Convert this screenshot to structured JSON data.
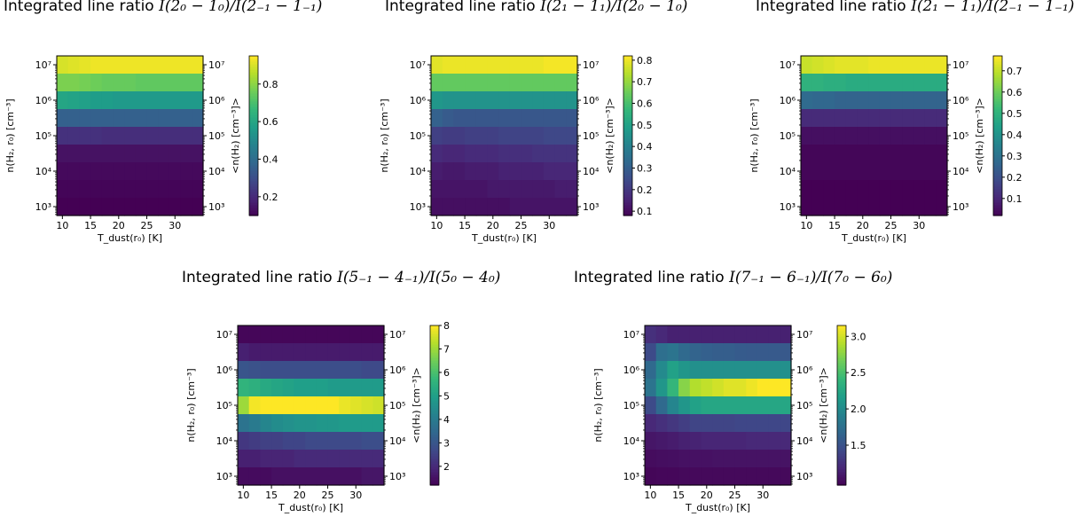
{
  "chart_data": [
    {
      "type": "heatmap",
      "title": "Integrated line ratio ",
      "title_math": "I(2₀ − 1₀)/I(2₋₁ − 1₋₁)",
      "xlabel": "T_dust(r₀) [K]",
      "ylabel_left": "n(H₂, r₀) [cm⁻³]",
      "ylabel_right": "<n(H₂) [cm⁻³]>",
      "x_ticks": [
        "10",
        "15",
        "20",
        "25",
        "30"
      ],
      "y_ticks": [
        "10³",
        "10⁴",
        "10⁵",
        "10⁶",
        "10⁷"
      ],
      "colorbar_ticks": [
        "0.2",
        "0.4",
        "0.6",
        "0.8"
      ],
      "colorbar_range": [
        0.1,
        0.95
      ],
      "temperatures": [
        10,
        12,
        14,
        16,
        18,
        20,
        22,
        24,
        26,
        28,
        30,
        32,
        34
      ],
      "log_density_rows": [
        7.0,
        6.5,
        6.0,
        5.5,
        5.0,
        4.5,
        4.0,
        3.5,
        3.0
      ],
      "values": [
        [
          0.9,
          0.91,
          0.92,
          0.93,
          0.93,
          0.93,
          0.93,
          0.93,
          0.93,
          0.93,
          0.93,
          0.93,
          0.93
        ],
        [
          0.78,
          0.78,
          0.77,
          0.76,
          0.75,
          0.75,
          0.75,
          0.74,
          0.74,
          0.74,
          0.74,
          0.74,
          0.74
        ],
        [
          0.6,
          0.59,
          0.58,
          0.57,
          0.57,
          0.56,
          0.56,
          0.56,
          0.56,
          0.56,
          0.56,
          0.56,
          0.56
        ],
        [
          0.36,
          0.36,
          0.36,
          0.36,
          0.36,
          0.36,
          0.36,
          0.36,
          0.36,
          0.36,
          0.36,
          0.36,
          0.36
        ],
        [
          0.22,
          0.22,
          0.22,
          0.22,
          0.21,
          0.21,
          0.21,
          0.21,
          0.21,
          0.21,
          0.21,
          0.21,
          0.21
        ],
        [
          0.14,
          0.14,
          0.14,
          0.14,
          0.14,
          0.14,
          0.14,
          0.14,
          0.14,
          0.14,
          0.14,
          0.14,
          0.14
        ],
        [
          0.12,
          0.12,
          0.12,
          0.12,
          0.12,
          0.12,
          0.12,
          0.12,
          0.12,
          0.12,
          0.12,
          0.12,
          0.12
        ],
        [
          0.11,
          0.11,
          0.11,
          0.11,
          0.11,
          0.11,
          0.11,
          0.11,
          0.11,
          0.11,
          0.11,
          0.11,
          0.11
        ],
        [
          0.1,
          0.1,
          0.1,
          0.1,
          0.1,
          0.1,
          0.1,
          0.1,
          0.1,
          0.1,
          0.1,
          0.1,
          0.1
        ]
      ]
    },
    {
      "type": "heatmap",
      "title": "Integrated line ratio ",
      "title_math": "I(2₁ − 1₁)/I(2₀ − 1₀)",
      "xlabel": "T_dust(r₀) [K]",
      "ylabel_left": "n(H₂, r₀) [cm⁻³]",
      "ylabel_right": "<n(H₂) [cm⁻³]>",
      "x_ticks": [
        "10",
        "15",
        "20",
        "25",
        "30"
      ],
      "y_ticks": [
        "10³",
        "10⁴",
        "10⁵",
        "10⁶",
        "10⁷"
      ],
      "colorbar_ticks": [
        "0.1",
        "0.2",
        "0.3",
        "0.4",
        "0.5",
        "0.6",
        "0.7",
        "0.8"
      ],
      "colorbar_range": [
        0.08,
        0.82
      ],
      "temperatures": [
        10,
        12,
        14,
        16,
        18,
        20,
        22,
        24,
        26,
        28,
        30,
        32,
        34
      ],
      "log_density_rows": [
        7.0,
        6.5,
        6.0,
        5.5,
        5.0,
        4.5,
        4.0,
        3.5,
        3.0
      ],
      "values": [
        [
          0.79,
          0.8,
          0.8,
          0.8,
          0.8,
          0.8,
          0.8,
          0.8,
          0.8,
          0.8,
          0.81,
          0.81,
          0.81
        ],
        [
          0.64,
          0.64,
          0.64,
          0.64,
          0.64,
          0.64,
          0.64,
          0.64,
          0.64,
          0.64,
          0.64,
          0.64,
          0.64
        ],
        [
          0.47,
          0.46,
          0.46,
          0.46,
          0.46,
          0.46,
          0.46,
          0.46,
          0.46,
          0.46,
          0.46,
          0.46,
          0.46
        ],
        [
          0.31,
          0.29,
          0.28,
          0.28,
          0.28,
          0.28,
          0.28,
          0.28,
          0.28,
          0.28,
          0.28,
          0.28,
          0.28
        ],
        [
          0.22,
          0.21,
          0.21,
          0.22,
          0.22,
          0.22,
          0.23,
          0.23,
          0.23,
          0.23,
          0.24,
          0.24,
          0.24
        ],
        [
          0.17,
          0.16,
          0.16,
          0.17,
          0.17,
          0.17,
          0.18,
          0.18,
          0.18,
          0.19,
          0.19,
          0.19,
          0.19
        ],
        [
          0.14,
          0.13,
          0.13,
          0.14,
          0.14,
          0.14,
          0.15,
          0.15,
          0.15,
          0.15,
          0.16,
          0.16,
          0.16
        ],
        [
          0.12,
          0.12,
          0.12,
          0.12,
          0.12,
          0.13,
          0.13,
          0.13,
          0.13,
          0.13,
          0.13,
          0.14,
          0.14
        ],
        [
          0.11,
          0.11,
          0.11,
          0.11,
          0.11,
          0.11,
          0.11,
          0.12,
          0.12,
          0.12,
          0.12,
          0.12,
          0.12
        ]
      ]
    },
    {
      "type": "heatmap",
      "title": "Integrated line ratio ",
      "title_math": "I(2₁ − 1₁)/I(2₋₁ − 1₋₁)",
      "xlabel": "T_dust(r₀) [K]",
      "ylabel_left": "n(H₂, r₀) [cm⁻³]",
      "ylabel_right": "<n(H₂) [cm⁻³]>",
      "x_ticks": [
        "10",
        "15",
        "20",
        "25",
        "30"
      ],
      "y_ticks": [
        "10³",
        "10⁴",
        "10⁵",
        "10⁶",
        "10⁷"
      ],
      "colorbar_ticks": [
        "0.1",
        "0.2",
        "0.3",
        "0.4",
        "0.5",
        "0.6",
        "0.7"
      ],
      "colorbar_range": [
        0.02,
        0.77
      ],
      "temperatures": [
        10,
        12,
        14,
        16,
        18,
        20,
        22,
        24,
        26,
        28,
        30,
        32,
        34
      ],
      "log_density_rows": [
        7.0,
        6.5,
        6.0,
        5.5,
        5.0,
        4.5,
        4.0,
        3.5,
        3.0
      ],
      "values": [
        [
          0.71,
          0.72,
          0.73,
          0.74,
          0.74,
          0.74,
          0.75,
          0.75,
          0.75,
          0.75,
          0.75,
          0.75,
          0.75
        ],
        [
          0.5,
          0.5,
          0.49,
          0.49,
          0.48,
          0.48,
          0.48,
          0.48,
          0.48,
          0.48,
          0.48,
          0.48,
          0.48
        ],
        [
          0.28,
          0.27,
          0.27,
          0.26,
          0.26,
          0.26,
          0.26,
          0.26,
          0.26,
          0.26,
          0.26,
          0.26,
          0.26
        ],
        [
          0.11,
          0.11,
          0.11,
          0.11,
          0.11,
          0.11,
          0.11,
          0.11,
          0.11,
          0.11,
          0.11,
          0.11,
          0.11
        ],
        [
          0.05,
          0.05,
          0.05,
          0.05,
          0.05,
          0.05,
          0.05,
          0.05,
          0.05,
          0.05,
          0.05,
          0.05,
          0.05
        ],
        [
          0.03,
          0.03,
          0.03,
          0.03,
          0.03,
          0.03,
          0.03,
          0.03,
          0.03,
          0.03,
          0.03,
          0.03,
          0.03
        ],
        [
          0.03,
          0.03,
          0.03,
          0.03,
          0.03,
          0.03,
          0.03,
          0.03,
          0.03,
          0.03,
          0.03,
          0.03,
          0.03
        ],
        [
          0.02,
          0.02,
          0.02,
          0.02,
          0.02,
          0.02,
          0.02,
          0.02,
          0.02,
          0.02,
          0.02,
          0.02,
          0.02
        ],
        [
          0.02,
          0.02,
          0.02,
          0.02,
          0.02,
          0.02,
          0.02,
          0.02,
          0.02,
          0.02,
          0.02,
          0.02,
          0.02
        ]
      ]
    },
    {
      "type": "heatmap",
      "title": "Integrated line ratio ",
      "title_math": "I(5₋₁ − 4₋₁)/I(5₀ − 4₀)",
      "xlabel": "T_dust(r₀) [K]",
      "ylabel_left": "n(H₂, r₀) [cm⁻³]",
      "ylabel_right": "<n(H₂) [cm⁻³]>",
      "x_ticks": [
        "10",
        "15",
        "20",
        "25",
        "30"
      ],
      "y_ticks": [
        "10³",
        "10⁴",
        "10⁵",
        "10⁶",
        "10⁷"
      ],
      "colorbar_ticks": [
        "2",
        "3",
        "4",
        "5",
        "6",
        "7",
        "8"
      ],
      "colorbar_range": [
        1.2,
        8.0
      ],
      "temperatures": [
        10,
        12,
        14,
        16,
        18,
        20,
        22,
        24,
        26,
        28,
        30,
        32,
        34
      ],
      "log_density_rows": [
        7.0,
        6.5,
        6.0,
        5.5,
        5.0,
        4.5,
        4.0,
        3.5,
        3.0
      ],
      "values": [
        [
          1.3,
          1.3,
          1.3,
          1.3,
          1.3,
          1.3,
          1.3,
          1.3,
          1.3,
          1.3,
          1.3,
          1.3,
          1.3
        ],
        [
          1.8,
          1.7,
          1.7,
          1.7,
          1.7,
          1.7,
          1.7,
          1.7,
          1.7,
          1.7,
          1.7,
          1.7,
          1.7
        ],
        [
          3.0,
          2.9,
          2.8,
          2.8,
          2.8,
          2.8,
          2.8,
          2.8,
          2.8,
          2.8,
          2.8,
          2.7,
          2.7
        ],
        [
          5.6,
          5.5,
          5.3,
          5.2,
          5.1,
          5.0,
          5.0,
          5.0,
          4.9,
          4.9,
          4.9,
          4.9,
          4.9
        ],
        [
          7.0,
          7.9,
          8.0,
          8.0,
          8.0,
          8.0,
          8.0,
          8.0,
          8.0,
          7.8,
          7.7,
          7.6,
          7.5
        ],
        [
          3.8,
          4.0,
          4.3,
          4.5,
          4.6,
          4.7,
          4.7,
          4.8,
          4.8,
          4.9,
          4.9,
          4.9,
          4.9
        ],
        [
          2.3,
          2.4,
          2.5,
          2.5,
          2.6,
          2.6,
          2.7,
          2.7,
          2.7,
          2.7,
          2.7,
          2.8,
          2.8
        ],
        [
          1.8,
          1.8,
          1.9,
          1.9,
          1.9,
          2.0,
          2.0,
          2.0,
          2.0,
          2.0,
          2.0,
          2.0,
          2.0
        ],
        [
          1.4,
          1.4,
          1.4,
          1.5,
          1.5,
          1.5,
          1.5,
          1.5,
          1.5,
          1.5,
          1.5,
          1.6,
          1.6
        ]
      ]
    },
    {
      "type": "heatmap",
      "title": "Integrated line ratio ",
      "title_math": "I(7₋₁ − 6₋₁)/I(7₀ − 6₀)",
      "xlabel": "T_dust(r₀) [K]",
      "ylabel_left": "n(H₂, r₀) [cm⁻³]",
      "ylabel_right": "<n(H₂) [cm⁻³]>",
      "x_ticks": [
        "10",
        "15",
        "20",
        "25",
        "30"
      ],
      "y_ticks": [
        "10³",
        "10⁴",
        "10⁵",
        "10⁶",
        "10⁷"
      ],
      "colorbar_ticks": [
        "1.5",
        "2.0",
        "2.5",
        "3.0"
      ],
      "colorbar_range": [
        0.95,
        3.15
      ],
      "temperatures": [
        10,
        12,
        14,
        16,
        18,
        20,
        22,
        24,
        26,
        28,
        30,
        32,
        34
      ],
      "log_density_rows": [
        7.0,
        6.5,
        6.0,
        5.5,
        5.0,
        4.5,
        4.0,
        3.5,
        3.0
      ],
      "values": [
        [
          1.25,
          1.2,
          1.15,
          1.15,
          1.15,
          1.15,
          1.15,
          1.15,
          1.15,
          1.15,
          1.15,
          1.15,
          1.15
        ],
        [
          1.45,
          1.75,
          1.8,
          1.7,
          1.65,
          1.62,
          1.6,
          1.6,
          1.58,
          1.57,
          1.57,
          1.57,
          1.56
        ],
        [
          1.7,
          2.0,
          2.2,
          2.1,
          2.05,
          2.05,
          2.05,
          2.05,
          2.05,
          2.05,
          2.05,
          2.05,
          2.05
        ],
        [
          1.8,
          2.1,
          2.4,
          2.75,
          2.9,
          2.95,
          3.0,
          3.05,
          3.05,
          3.1,
          3.15,
          3.15,
          3.15
        ],
        [
          1.45,
          1.7,
          1.95,
          2.1,
          2.2,
          2.25,
          2.25,
          2.25,
          2.25,
          2.25,
          2.25,
          2.25,
          2.25
        ],
        [
          1.2,
          1.25,
          1.3,
          1.35,
          1.4,
          1.4,
          1.4,
          1.4,
          1.42,
          1.42,
          1.42,
          1.42,
          1.42
        ],
        [
          1.08,
          1.1,
          1.12,
          1.15,
          1.16,
          1.18,
          1.18,
          1.18,
          1.18,
          1.2,
          1.2,
          1.2,
          1.2
        ],
        [
          1.02,
          1.03,
          1.04,
          1.05,
          1.05,
          1.05,
          1.06,
          1.06,
          1.06,
          1.06,
          1.06,
          1.06,
          1.06
        ],
        [
          0.98,
          0.99,
          0.99,
          1.0,
          1.0,
          1.0,
          1.0,
          1.0,
          1.0,
          1.0,
          1.0,
          1.0,
          1.0
        ]
      ]
    }
  ]
}
